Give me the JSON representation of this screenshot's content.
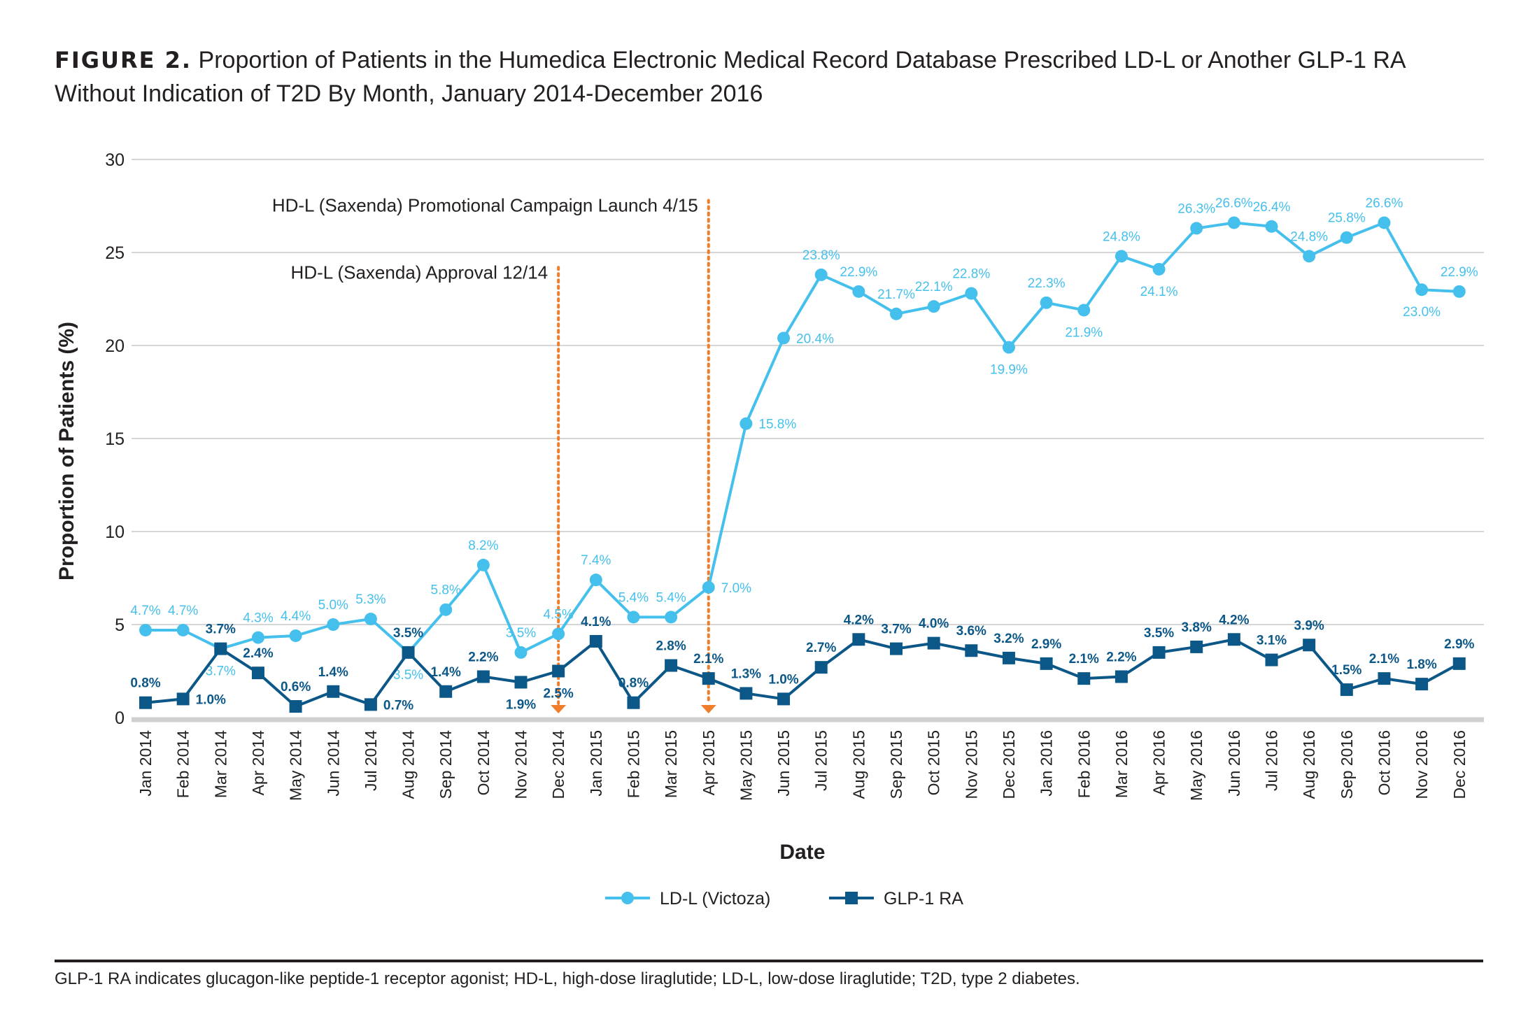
{
  "title": {
    "label": "FIGURE 2.",
    "text": "Proportion of Patients in the Humedica Electronic Medical Record Database Prescribed LD-L or Another GLP-1 RA Without Indication of T2D By Month, January 2014-December 2016"
  },
  "footnote": "GLP-1 RA indicates glucagon-like peptide-1 receptor agonist; HD-L, high-dose liraglutide; LD-L, low-dose liraglutide; T2D, type 2 diabetes.",
  "colors": {
    "ldl": "#45c0ec",
    "glp1": "#0b5788",
    "annotation": "#ef7d2a",
    "grid": "#c8c8c8",
    "axis": "#d0d0d0",
    "text": "#231f20"
  },
  "chart_data": {
    "type": "line",
    "xlabel": "Date",
    "ylabel": "Proportion of Patients (%)",
    "ylim": [
      0,
      30
    ],
    "yticks": [
      "0",
      "5",
      "10",
      "15",
      "20",
      "25",
      "30"
    ],
    "grid": true,
    "legend_position": "bottom-center",
    "categories": [
      "Jan 2014",
      "Feb 2014",
      "Mar 2014",
      "Apr 2014",
      "May 2014",
      "Jun 2014",
      "Jul 2014",
      "Aug 2014",
      "Sep 2014",
      "Oct 2014",
      "Nov 2014",
      "Dec 2014",
      "Jan 2015",
      "Feb 2015",
      "Mar 2015",
      "Apr 2015",
      "May 2015",
      "Jun 2015",
      "Jul 2015",
      "Aug 2015",
      "Sep 2015",
      "Oct 2015",
      "Nov 2015",
      "Dec 2015",
      "Jan 2016",
      "Feb 2016",
      "Mar 2016",
      "Apr 2016",
      "May 2016",
      "Jun 2016",
      "Jul 2016",
      "Aug 2016",
      "Sep 2016",
      "Oct 2016",
      "Nov 2016",
      "Dec 2016"
    ],
    "series": [
      {
        "name": "LD-L (Victoza)",
        "marker": "circle",
        "values": [
          4.7,
          4.7,
          3.7,
          4.3,
          4.4,
          5.0,
          5.3,
          3.5,
          5.8,
          8.2,
          3.5,
          4.5,
          7.4,
          5.4,
          5.4,
          7.0,
          15.8,
          20.4,
          23.8,
          22.9,
          21.7,
          22.1,
          22.8,
          19.9,
          22.3,
          21.9,
          24.8,
          24.1,
          26.3,
          26.6,
          26.4,
          24.8,
          25.8,
          26.6,
          23.0,
          22.9
        ],
        "labels": [
          "4.7%",
          "4.7%",
          "3.7%",
          "4.3%",
          "4.4%",
          "5.0%",
          "5.3%",
          "3.5%",
          "5.8%",
          "8.2%",
          "3.5%",
          "4.5%",
          "7.4%",
          "5.4%",
          "5.4%",
          "7.0%",
          "15.8%",
          "20.4%",
          "23.8%",
          "22.9%",
          "21.7%",
          "22.1%",
          "22.8%",
          "19.9%",
          "22.3%",
          "21.9%",
          "24.8%",
          "24.1%",
          "26.3%",
          "26.6%",
          "26.4%",
          "24.8%",
          "25.8%",
          "26.6%",
          "23.0%",
          "22.9%"
        ]
      },
      {
        "name": "GLP-1 RA",
        "marker": "square",
        "values": [
          0.8,
          1.0,
          3.7,
          2.4,
          0.6,
          1.4,
          0.7,
          3.5,
          1.4,
          2.2,
          1.9,
          2.5,
          4.1,
          0.8,
          2.8,
          2.1,
          1.3,
          1.0,
          2.7,
          4.2,
          3.7,
          4.0,
          3.6,
          3.2,
          2.9,
          2.1,
          2.2,
          3.5,
          3.8,
          4.2,
          3.1,
          3.9,
          1.5,
          2.1,
          1.8,
          2.9
        ],
        "labels": [
          "0.8%",
          "1.0%",
          "3.7%",
          "2.4%",
          "0.6%",
          "1.4%",
          "0.7%",
          "3.5%",
          "1.4%",
          "2.2%",
          "1.9%",
          "2.5%",
          "4.1%",
          "0.8%",
          "2.8%",
          "2.1%",
          "1.3%",
          "1.0%",
          "2.7%",
          "4.2%",
          "3.7%",
          "4.0%",
          "3.6%",
          "3.2%",
          "2.9%",
          "2.1%",
          "2.2%",
          "3.5%",
          "3.8%",
          "4.2%",
          "3.1%",
          "3.9%",
          "1.5%",
          "2.1%",
          "1.8%",
          "2.9%"
        ]
      }
    ],
    "annotations": [
      {
        "text": "HD-L (Saxenda) Approval 12/14",
        "category": "Dec 2014",
        "top_value": 24.2
      },
      {
        "text": "HD-L (Saxenda) Promotional Campaign Launch 4/15",
        "category": "Apr 2015",
        "top_value": 27.8
      }
    ]
  }
}
